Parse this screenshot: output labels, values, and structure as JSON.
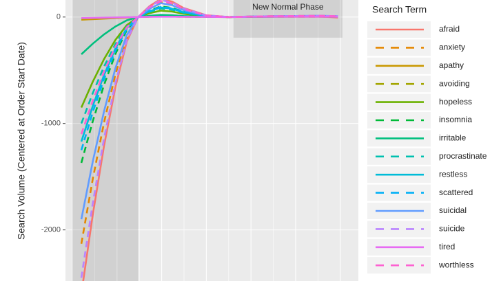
{
  "chart_data": {
    "type": "line",
    "y_label": "Search Volume (Centered at Order Start Date)",
    "legend_title": "Search Term",
    "legend_position": "right",
    "grid": true,
    "ylim": [
      -2480,
      160
    ],
    "yticks": [
      0,
      -1000,
      -2000
    ],
    "xlim": [
      -3.2,
      9.7
    ],
    "regions": [
      {
        "x0": -2.9,
        "x1": 0,
        "y0": -2480
      },
      {
        "label": "New Normal Phase",
        "x0": 4.2,
        "x1": 9,
        "y0": -194
      }
    ],
    "x": [
      -2.5,
      -2,
      -1.5,
      -1,
      -0.5,
      0,
      0.5,
      1,
      1.5,
      2,
      3,
      4,
      5,
      6,
      7,
      8,
      8.8
    ],
    "series": [
      {
        "name": "afraid",
        "color": "#F8766D",
        "linetype": "solid",
        "values": [
          -2600,
          -1862,
          -1209,
          -658,
          -231,
          0,
          102,
          170,
          145,
          85,
          17,
          0,
          5,
          8,
          10,
          5,
          -5
        ]
      },
      {
        "name": "anxiety",
        "color": "#E58700",
        "linetype": "dashed",
        "values": [
          -2130,
          -1525,
          -990,
          -539,
          -190,
          0,
          84,
          140,
          119,
          70,
          14,
          0,
          5,
          8,
          10,
          12,
          5
        ]
      },
      {
        "name": "apathy",
        "color": "#C99800",
        "linetype": "solid",
        "values": [
          -25,
          -20,
          -15,
          -10,
          -5,
          0,
          3,
          5,
          4,
          3,
          1,
          0,
          2,
          3,
          3,
          3,
          2
        ]
      },
      {
        "name": "avoiding",
        "color": "#A3A500",
        "linetype": "dashed",
        "values": [
          -15,
          -12,
          -9,
          -6,
          -3,
          0,
          3,
          5,
          4,
          3,
          1,
          0,
          2,
          3,
          3,
          3,
          2
        ]
      },
      {
        "name": "hopeless",
        "color": "#6BB100",
        "linetype": "solid",
        "values": [
          -850,
          -609,
          -395,
          -215,
          -76,
          0,
          36,
          60,
          51,
          30,
          6,
          0,
          3,
          5,
          6,
          7,
          5
        ]
      },
      {
        "name": "insomnia",
        "color": "#00BA38",
        "linetype": "dashed",
        "values": [
          -1370,
          -981,
          -637,
          -347,
          -122,
          0,
          60,
          100,
          85,
          50,
          10,
          0,
          4,
          6,
          8,
          9,
          6
        ]
      },
      {
        "name": "irritable",
        "color": "#00BF7D",
        "linetype": "solid",
        "values": [
          -350,
          -251,
          -163,
          -89,
          -31,
          0,
          12,
          20,
          17,
          10,
          2,
          0,
          2,
          3,
          4,
          4,
          3
        ]
      },
      {
        "name": "procrastinate",
        "color": "#00C0AF",
        "linetype": "dashed",
        "values": [
          -1000,
          -716,
          -465,
          -253,
          -89,
          0,
          48,
          80,
          68,
          40,
          8,
          0,
          4,
          6,
          8,
          9,
          6
        ]
      },
      {
        "name": "restless",
        "color": "#00BCD8",
        "linetype": "solid",
        "values": [
          -1170,
          -838,
          -544,
          -296,
          -104,
          0,
          54,
          90,
          77,
          45,
          9,
          0,
          4,
          6,
          8,
          9,
          6
        ]
      },
      {
        "name": "scattered",
        "color": "#00B0F6",
        "linetype": "dashed",
        "values": [
          -1250,
          -895,
          -581,
          -316,
          -111,
          0,
          57,
          95,
          81,
          48,
          10,
          0,
          4,
          6,
          8,
          9,
          6
        ]
      },
      {
        "name": "suicidal",
        "color": "#619CFF",
        "linetype": "solid",
        "values": [
          -1900,
          -1360,
          -884,
          -481,
          -169,
          0,
          78,
          130,
          111,
          65,
          13,
          0,
          5,
          8,
          10,
          12,
          8
        ]
      },
      {
        "name": "suicide",
        "color": "#B983FF",
        "linetype": "dashed",
        "values": [
          -2450,
          -1754,
          -1139,
          -620,
          -218,
          0,
          96,
          160,
          136,
          80,
          16,
          0,
          5,
          8,
          10,
          12,
          8
        ]
      },
      {
        "name": "tired",
        "color": "#E76BF3",
        "linetype": "solid",
        "values": [
          -10,
          -8,
          -6,
          -4,
          -2,
          0,
          2,
          3,
          3,
          2,
          1,
          0,
          2,
          3,
          3,
          3,
          2
        ]
      },
      {
        "name": "worthless",
        "color": "#FD61D1",
        "linetype": "dashed",
        "values": [
          -1100,
          -788,
          -512,
          -278,
          -98,
          0,
          90,
          150,
          128,
          75,
          15,
          0,
          5,
          8,
          10,
          12,
          8
        ]
      }
    ]
  }
}
